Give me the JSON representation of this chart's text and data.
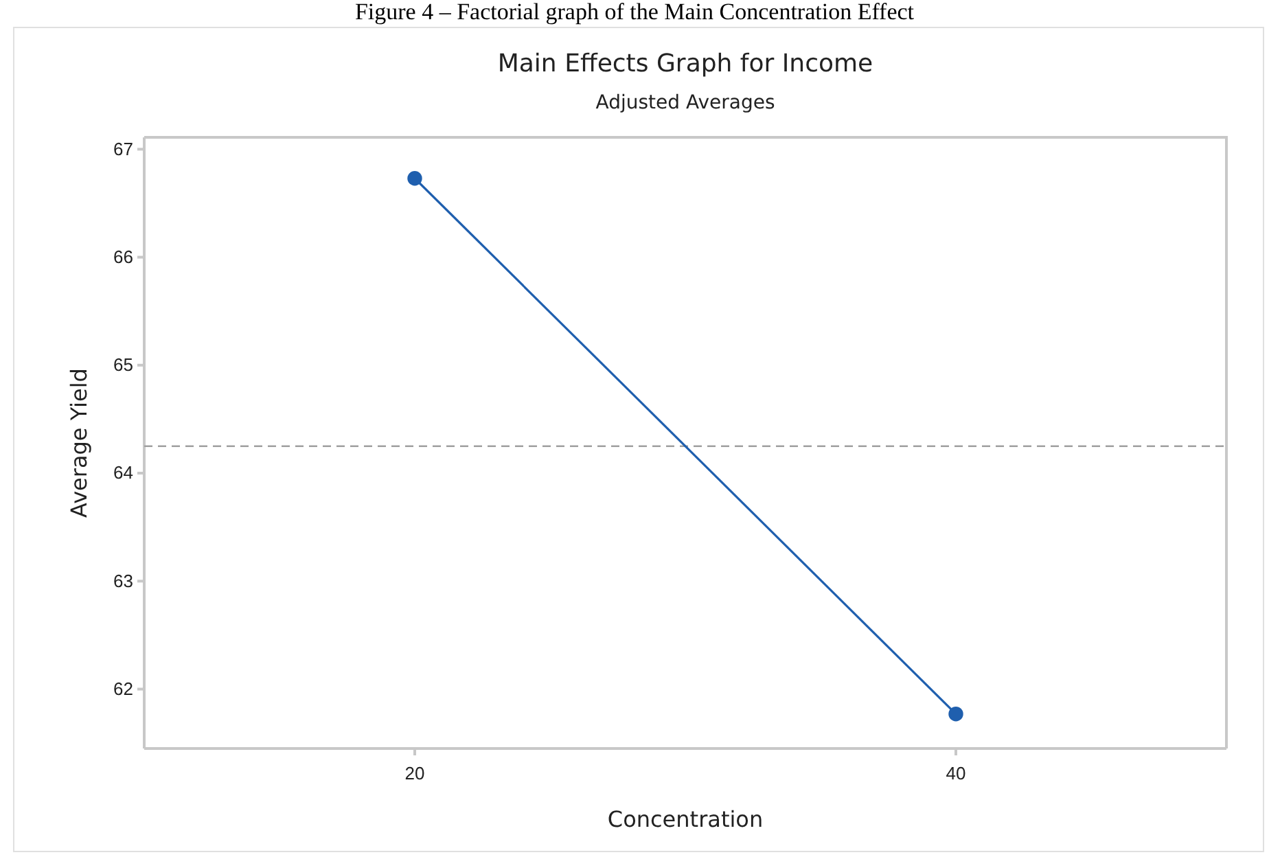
{
  "chart_data": {
    "type": "line",
    "title": "Main Effects Graph for Income",
    "subtitle": "Adjusted Averages",
    "xlabel": "Concentration",
    "ylabel": "Average Yield",
    "annotations": [
      "Figure 4 – Factorial graph of the Main Concentration Effect"
    ],
    "categories": [
      "20",
      "40"
    ],
    "series": [
      {
        "color": "#1f5fae",
        "values": [
          66.73,
          61.77
        ]
      }
    ],
    "marker": "circle",
    "line_style": "solid",
    "ylim": [
      61.45,
      67.11
    ],
    "yticks": [
      62,
      63,
      64,
      65,
      66,
      67
    ],
    "ref_lines": [
      {
        "axis": "y",
        "value": 64.25,
        "color": "#a0a0a0",
        "line_style": "dashed"
      }
    ],
    "grid": false
  }
}
